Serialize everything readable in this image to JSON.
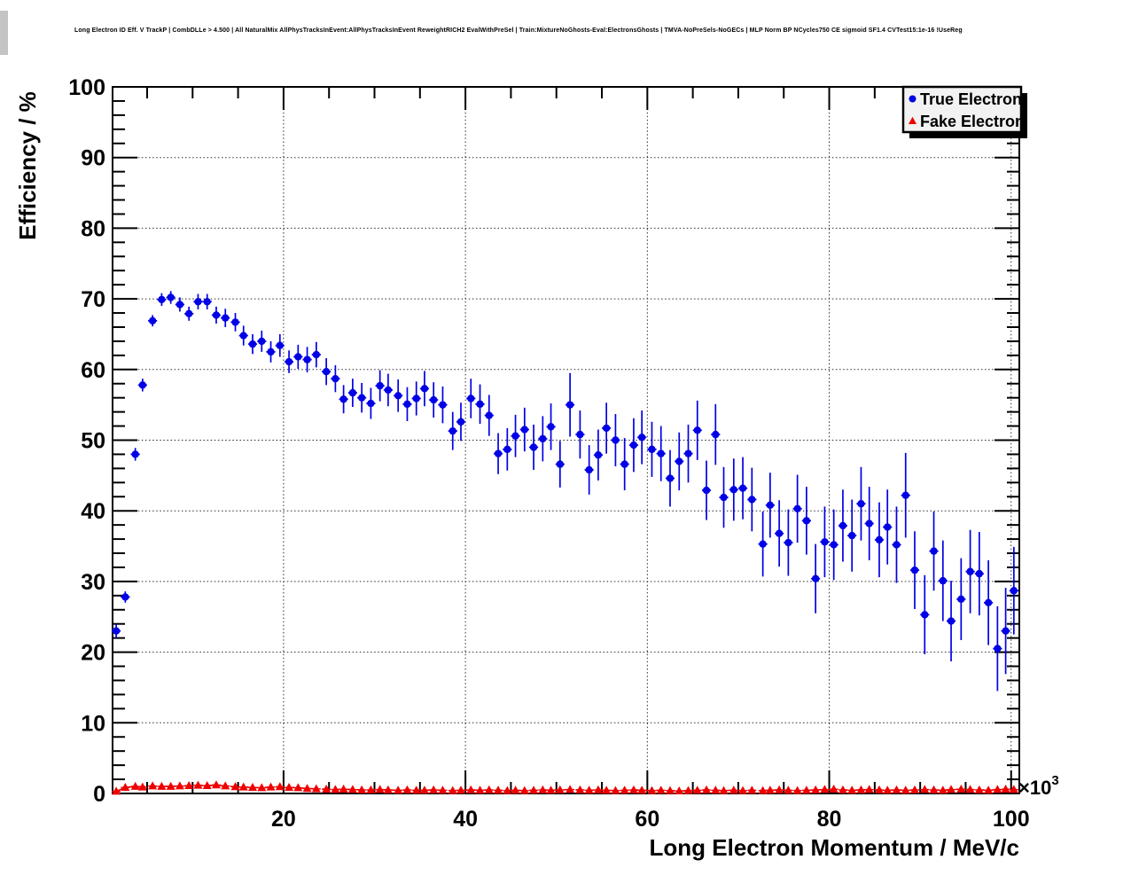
{
  "chart_data": {
    "type": "scatter",
    "title": "Long Electron ID Eff. V TrackP | CombDLLe > 4.500 | All NaturalMix AllPhysTracksInEvent:AllPhysTracksInEvent ReweightRICH2 EvalWithPreSel | Train:MixtureNoGhosts-Eval:ElectronsGhosts | TMVA-NoPreSels-NoGECs | MLP Norm BP NCycles750 CE sigmoid SF1.4 CVTest15:1e-16 !UseReg",
    "xlabel": "Long Electron Momentum / MeV/c",
    "ylabel": "Efficiency / %",
    "x_multiplier": {
      "base": "×10",
      "exponent": "3"
    },
    "xlim": [
      1.2,
      100.9
    ],
    "ylim": [
      0,
      100
    ],
    "x_major_ticks": [
      20,
      40,
      60,
      80,
      100
    ],
    "x_tick_labels": [
      "20",
      "40",
      "60",
      "80",
      "100"
    ],
    "x_minor_step": 5,
    "y_major_step": 10,
    "y_minor_step": 2,
    "y_tick_labels": [
      "0",
      "10",
      "20",
      "30",
      "40",
      "50",
      "60",
      "70",
      "80",
      "90",
      "100"
    ],
    "grid": true,
    "legend_position": "top-right",
    "series": [
      {
        "name": "True Electron",
        "marker": "circle",
        "color": "#0000e6",
        "points": [
          [
            1.6,
            23.0,
            1.0
          ],
          [
            2.6,
            27.8,
            0.8
          ],
          [
            3.7,
            48.0,
            0.9
          ],
          [
            4.5,
            57.8,
            0.9
          ],
          [
            5.6,
            66.9,
            0.8
          ],
          [
            6.6,
            69.9,
            0.9
          ],
          [
            7.6,
            70.2,
            0.9
          ],
          [
            8.6,
            69.2,
            1.0
          ],
          [
            9.6,
            67.9,
            1.0
          ],
          [
            10.6,
            69.6,
            1.1
          ],
          [
            11.6,
            69.6,
            1.1
          ],
          [
            12.6,
            67.7,
            1.2
          ],
          [
            13.6,
            67.3,
            1.3
          ],
          [
            14.7,
            66.7,
            1.3
          ],
          [
            15.6,
            64.8,
            1.4
          ],
          [
            16.6,
            63.6,
            1.4
          ],
          [
            17.6,
            64.0,
            1.5
          ],
          [
            18.6,
            62.5,
            1.5
          ],
          [
            19.6,
            63.4,
            1.6
          ],
          [
            20.6,
            61.1,
            1.6
          ],
          [
            21.6,
            61.8,
            1.7
          ],
          [
            22.6,
            61.4,
            1.8
          ],
          [
            23.6,
            62.1,
            1.8
          ],
          [
            24.7,
            59.7,
            1.9
          ],
          [
            25.7,
            58.7,
            1.9
          ],
          [
            26.6,
            55.8,
            2.0
          ],
          [
            27.6,
            56.7,
            2.0
          ],
          [
            28.6,
            56.0,
            2.1
          ],
          [
            29.6,
            55.2,
            2.2
          ],
          [
            30.6,
            57.7,
            2.2
          ],
          [
            31.5,
            57.1,
            2.3
          ],
          [
            32.6,
            56.3,
            2.3
          ],
          [
            33.6,
            55.1,
            2.4
          ],
          [
            34.6,
            55.9,
            2.4
          ],
          [
            35.5,
            57.3,
            2.5
          ],
          [
            36.5,
            55.7,
            2.5
          ],
          [
            37.5,
            55.0,
            2.6
          ],
          [
            38.6,
            51.3,
            2.7
          ],
          [
            39.5,
            52.6,
            2.7
          ],
          [
            40.6,
            55.9,
            2.8
          ],
          [
            41.6,
            55.1,
            2.8
          ],
          [
            42.6,
            53.5,
            2.9
          ],
          [
            43.6,
            48.1,
            2.9
          ],
          [
            44.6,
            48.7,
            3.0
          ],
          [
            45.5,
            50.6,
            3.0
          ],
          [
            46.5,
            51.5,
            3.1
          ],
          [
            47.5,
            49.0,
            3.2
          ],
          [
            48.5,
            50.2,
            3.2
          ],
          [
            49.4,
            51.9,
            3.3
          ],
          [
            50.4,
            46.6,
            3.3
          ],
          [
            51.5,
            55.0,
            4.5
          ],
          [
            52.6,
            50.8,
            3.4
          ],
          [
            53.6,
            45.8,
            3.5
          ],
          [
            54.6,
            47.9,
            3.6
          ],
          [
            55.5,
            51.7,
            3.6
          ],
          [
            56.5,
            50.0,
            3.7
          ],
          [
            57.5,
            46.6,
            3.7
          ],
          [
            58.5,
            49.3,
            3.8
          ],
          [
            59.4,
            50.4,
            3.8
          ],
          [
            60.5,
            48.7,
            3.9
          ],
          [
            61.5,
            48.1,
            3.9
          ],
          [
            62.5,
            44.6,
            4.0
          ],
          [
            63.5,
            47.0,
            4.1
          ],
          [
            64.5,
            48.1,
            4.1
          ],
          [
            65.5,
            51.4,
            4.2
          ],
          [
            66.5,
            42.9,
            4.2
          ],
          [
            67.5,
            50.8,
            4.3
          ],
          [
            68.4,
            41.9,
            4.3
          ],
          [
            69.5,
            43.0,
            4.4
          ],
          [
            70.5,
            43.2,
            4.4
          ],
          [
            71.5,
            41.6,
            4.5
          ],
          [
            72.7,
            35.3,
            4.6
          ],
          [
            73.5,
            40.8,
            4.6
          ],
          [
            74.5,
            36.8,
            4.7
          ],
          [
            75.5,
            35.5,
            4.7
          ],
          [
            76.5,
            40.3,
            4.8
          ],
          [
            77.5,
            38.6,
            4.8
          ],
          [
            78.5,
            30.4,
            4.9
          ],
          [
            79.5,
            35.6,
            5.0
          ],
          [
            80.5,
            35.2,
            5.0
          ],
          [
            81.5,
            37.9,
            5.1
          ],
          [
            82.5,
            36.5,
            5.1
          ],
          [
            83.5,
            41.0,
            5.2
          ],
          [
            84.4,
            38.2,
            5.2
          ],
          [
            85.5,
            35.9,
            5.3
          ],
          [
            86.4,
            37.7,
            5.3
          ],
          [
            87.4,
            35.2,
            5.4
          ],
          [
            88.4,
            42.2,
            6.0
          ],
          [
            89.4,
            31.6,
            5.5
          ],
          [
            90.5,
            25.3,
            5.6
          ],
          [
            91.5,
            34.3,
            5.6
          ],
          [
            92.5,
            30.1,
            5.7
          ],
          [
            93.4,
            24.4,
            5.7
          ],
          [
            94.5,
            27.5,
            5.8
          ],
          [
            95.5,
            31.4,
            5.9
          ],
          [
            96.5,
            31.1,
            5.9
          ],
          [
            97.5,
            27.0,
            6.0
          ],
          [
            98.5,
            20.5,
            6.0
          ],
          [
            99.4,
            23.0,
            6.1
          ],
          [
            100.3,
            28.7,
            6.2
          ]
        ]
      },
      {
        "name": "Fake Electron",
        "marker": "triangle",
        "color": "#ee0000",
        "line": "dashed",
        "points": [
          [
            1.6,
            0.3
          ],
          [
            2.6,
            0.85
          ],
          [
            3.7,
            1.0
          ],
          [
            4.5,
            0.9
          ],
          [
            5.6,
            1.05
          ],
          [
            6.6,
            1.0
          ],
          [
            7.6,
            1.0
          ],
          [
            8.6,
            1.05
          ],
          [
            9.6,
            1.1
          ],
          [
            10.6,
            1.15
          ],
          [
            11.6,
            1.1
          ],
          [
            12.6,
            1.2
          ],
          [
            13.6,
            1.05
          ],
          [
            14.7,
            0.95
          ],
          [
            15.6,
            0.9
          ],
          [
            16.6,
            0.85
          ],
          [
            17.6,
            0.8
          ],
          [
            18.6,
            0.9
          ],
          [
            19.6,
            0.95
          ],
          [
            20.6,
            0.85
          ],
          [
            21.6,
            0.8
          ],
          [
            22.6,
            0.7
          ],
          [
            23.6,
            0.65
          ],
          [
            24.7,
            0.6
          ],
          [
            25.7,
            0.55
          ],
          [
            26.6,
            0.6
          ],
          [
            27.6,
            0.55
          ],
          [
            28.6,
            0.5
          ],
          [
            29.6,
            0.5
          ],
          [
            30.6,
            0.55
          ],
          [
            31.5,
            0.5
          ],
          [
            32.6,
            0.45
          ],
          [
            33.6,
            0.5
          ],
          [
            34.6,
            0.45
          ],
          [
            35.5,
            0.45
          ],
          [
            36.5,
            0.5
          ],
          [
            37.5,
            0.45
          ],
          [
            38.6,
            0.4
          ],
          [
            39.5,
            0.45
          ],
          [
            40.6,
            0.5
          ],
          [
            41.6,
            0.45
          ],
          [
            42.6,
            0.5
          ],
          [
            43.6,
            0.45
          ],
          [
            44.6,
            0.4
          ],
          [
            45.5,
            0.45
          ],
          [
            46.5,
            0.4
          ],
          [
            47.5,
            0.45
          ],
          [
            48.5,
            0.5
          ],
          [
            49.4,
            0.45
          ],
          [
            50.4,
            0.5
          ],
          [
            51.5,
            0.55
          ],
          [
            52.6,
            0.5
          ],
          [
            53.6,
            0.45
          ],
          [
            54.6,
            0.5
          ],
          [
            55.5,
            0.45
          ],
          [
            56.5,
            0.4
          ],
          [
            57.5,
            0.45
          ],
          [
            58.5,
            0.5
          ],
          [
            59.4,
            0.45
          ],
          [
            60.5,
            0.4
          ],
          [
            61.5,
            0.45
          ],
          [
            62.5,
            0.4
          ],
          [
            63.5,
            0.35
          ],
          [
            64.5,
            0.4
          ],
          [
            65.5,
            0.45
          ],
          [
            66.5,
            0.5
          ],
          [
            67.5,
            0.45
          ],
          [
            68.4,
            0.4
          ],
          [
            69.5,
            0.45
          ],
          [
            70.5,
            0.4
          ],
          [
            71.5,
            0.45
          ],
          [
            72.7,
            0.4
          ],
          [
            73.5,
            0.45
          ],
          [
            74.5,
            0.5
          ],
          [
            75.5,
            0.45
          ],
          [
            76.5,
            0.4
          ],
          [
            77.5,
            0.45
          ],
          [
            78.5,
            0.5
          ],
          [
            79.5,
            0.55
          ],
          [
            80.5,
            0.6
          ],
          [
            81.5,
            0.5
          ],
          [
            82.5,
            0.45
          ],
          [
            83.5,
            0.5
          ],
          [
            84.4,
            0.55
          ],
          [
            85.5,
            0.5
          ],
          [
            86.4,
            0.45
          ],
          [
            87.4,
            0.5
          ],
          [
            88.4,
            0.45
          ],
          [
            89.4,
            0.5
          ],
          [
            90.5,
            0.55
          ],
          [
            91.5,
            0.5
          ],
          [
            92.5,
            0.45
          ],
          [
            93.4,
            0.55
          ],
          [
            94.5,
            0.6
          ],
          [
            95.5,
            0.55
          ],
          [
            96.5,
            0.5
          ],
          [
            97.5,
            0.45
          ],
          [
            98.5,
            0.55
          ],
          [
            99.4,
            0.6
          ],
          [
            100.3,
            0.55
          ]
        ]
      }
    ]
  }
}
